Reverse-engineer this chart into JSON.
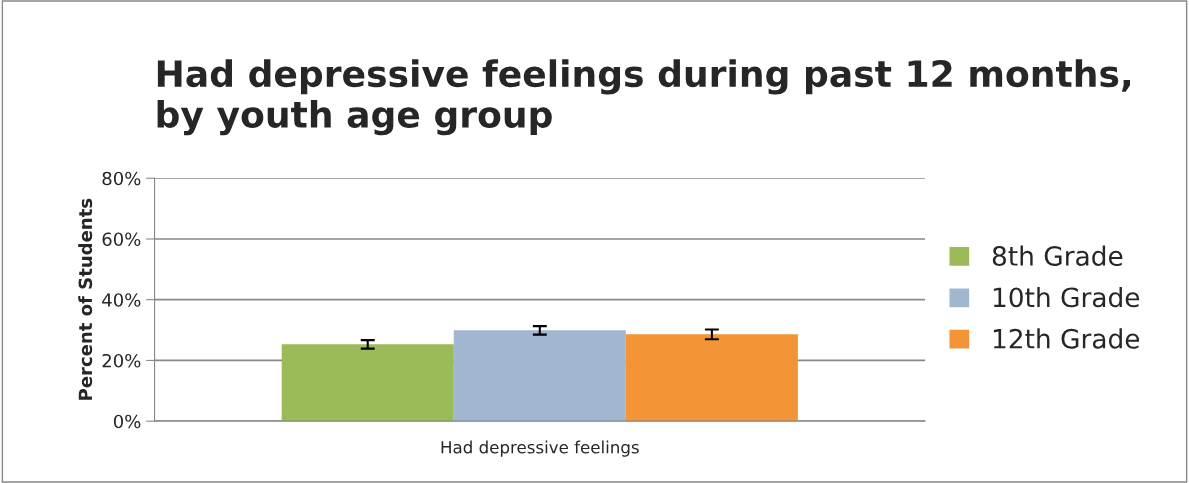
{
  "chart_data": {
    "type": "bar",
    "title": "Had depressive feelings during past 12 months, by youth age group",
    "ylabel": "Percent of Students",
    "categories": [
      "Had depressive feelings"
    ],
    "series": [
      {
        "name": "8th Grade",
        "color": "#9bbb59",
        "values": [
          25.3
        ],
        "errors": [
          1.4
        ]
      },
      {
        "name": "10th Grade",
        "color": "#a1b7cf",
        "values": [
          29.9
        ],
        "errors": [
          1.4
        ]
      },
      {
        "name": "12th Grade",
        "color": "#f39536",
        "values": [
          28.6
        ],
        "errors": [
          1.6
        ]
      }
    ],
    "ylim": [
      0,
      80
    ],
    "yticks": [
      {
        "value": 0,
        "label": "0%"
      },
      {
        "value": 20,
        "label": "20%"
      },
      {
        "value": 40,
        "label": "40%"
      },
      {
        "value": 60,
        "label": "60%"
      },
      {
        "value": 80,
        "label": "80%"
      }
    ],
    "grid": "y",
    "legend": "right"
  }
}
